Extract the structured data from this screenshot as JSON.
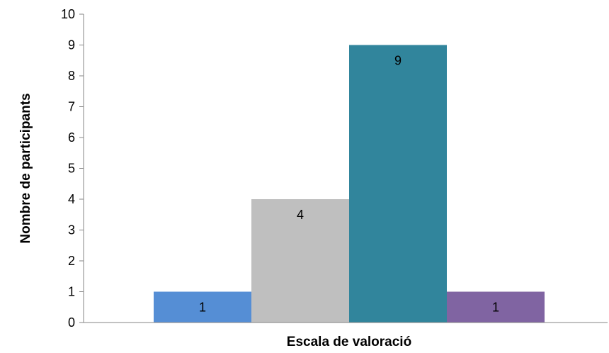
{
  "chart_data": {
    "type": "bar",
    "title": "",
    "xlabel": "Escala de valoració",
    "ylabel": "Nombre de participants",
    "ylim": [
      0,
      10
    ],
    "yticks": [
      0,
      1,
      2,
      3,
      4,
      5,
      6,
      7,
      8,
      9,
      10
    ],
    "grid": false,
    "legend": "none",
    "categories": [
      "Escala de valoració"
    ],
    "series": [
      {
        "values": [
          1
        ],
        "color": "#558ED5"
      },
      {
        "values": [
          4
        ],
        "color": "#BFBFBF"
      },
      {
        "values": [
          9
        ],
        "color": "#31859C"
      },
      {
        "values": [
          1
        ],
        "color": "#8064A2"
      }
    ]
  }
}
